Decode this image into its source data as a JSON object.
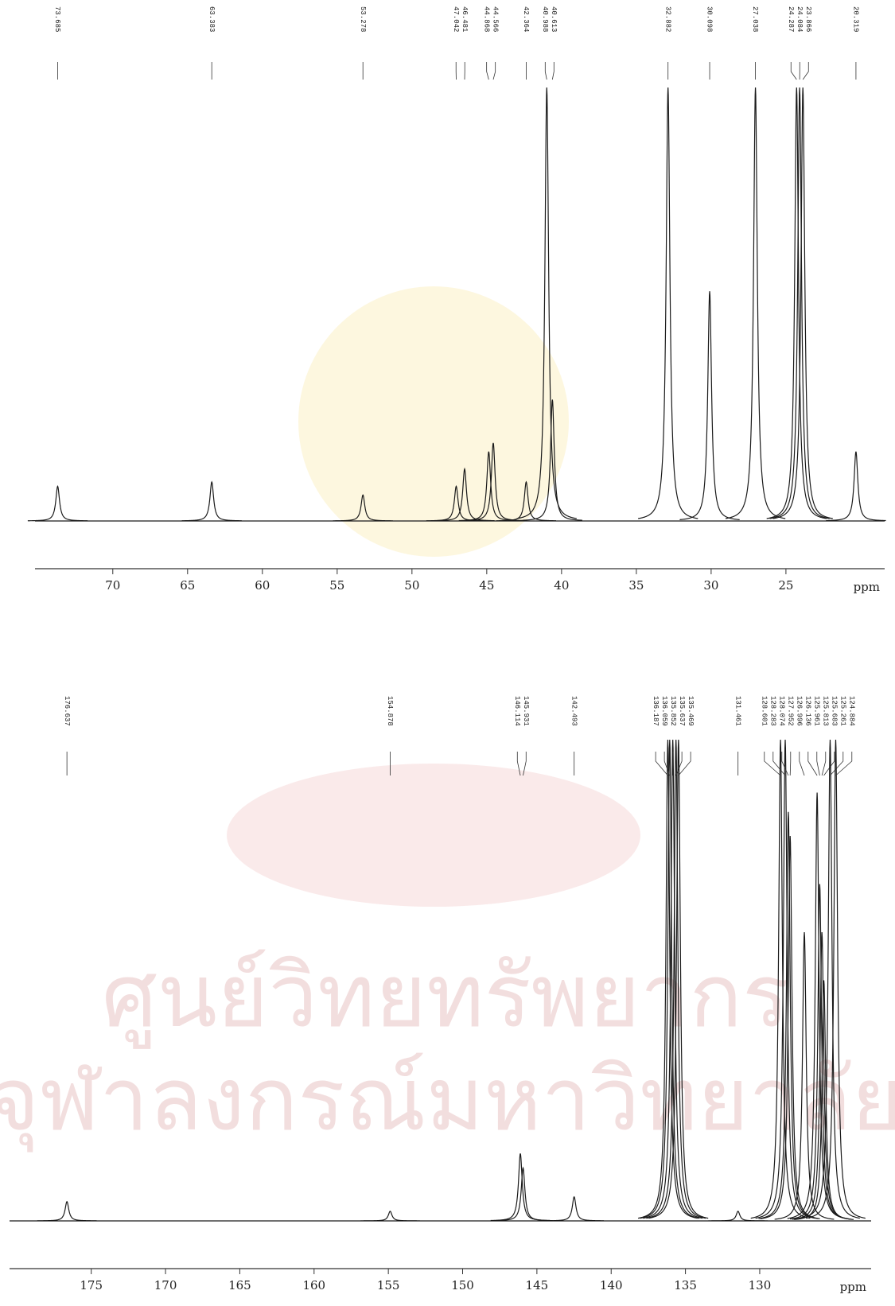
{
  "watermark": [
    "ศูนย์วิทยทรัพยากร",
    "จุฬาลงกรณ์มหาวิทยาลัย"
  ],
  "chart_data": [
    {
      "type": "spectrum",
      "xlabel": "ppm",
      "color": "#1a1a1a",
      "xlim": [
        75.2,
        18.4
      ],
      "ylim": [
        0,
        100
      ],
      "xticks": [
        70,
        65,
        60,
        55,
        50,
        45,
        40,
        35,
        30,
        25
      ],
      "x": [
        73.685,
        63.383,
        53.278,
        47.042,
        46.481,
        44.868,
        44.566,
        42.364,
        40.988,
        40.613,
        32.882,
        30.098,
        27.038,
        24.287,
        24.084,
        23.866,
        20.319
      ],
      "values": [
        8,
        9,
        6,
        8,
        12,
        16,
        18,
        9,
        100,
        28,
        100,
        53,
        100,
        100,
        100,
        100,
        16
      ]
    },
    {
      "type": "spectrum",
      "xlabel": "ppm",
      "color": "#1a1a1a",
      "xlim": [
        180.5,
        122.5
      ],
      "ylim": [
        0,
        100
      ],
      "xticks": [
        175,
        170,
        165,
        160,
        155,
        150,
        145,
        140,
        135,
        130
      ],
      "x": [
        176.637,
        154.878,
        146.114,
        145.931,
        142.493,
        136.187,
        136.059,
        135.852,
        135.637,
        135.469,
        131.461,
        128.601,
        128.283,
        128.074,
        127.952,
        126.996,
        126.136,
        125.961,
        125.813,
        125.683,
        125.261,
        124.884
      ],
      "values": [
        4,
        2,
        14,
        11,
        5,
        100,
        100,
        100,
        100,
        100,
        2,
        100,
        100,
        85,
        80,
        60,
        89,
        70,
        60,
        50,
        100,
        100
      ]
    }
  ]
}
